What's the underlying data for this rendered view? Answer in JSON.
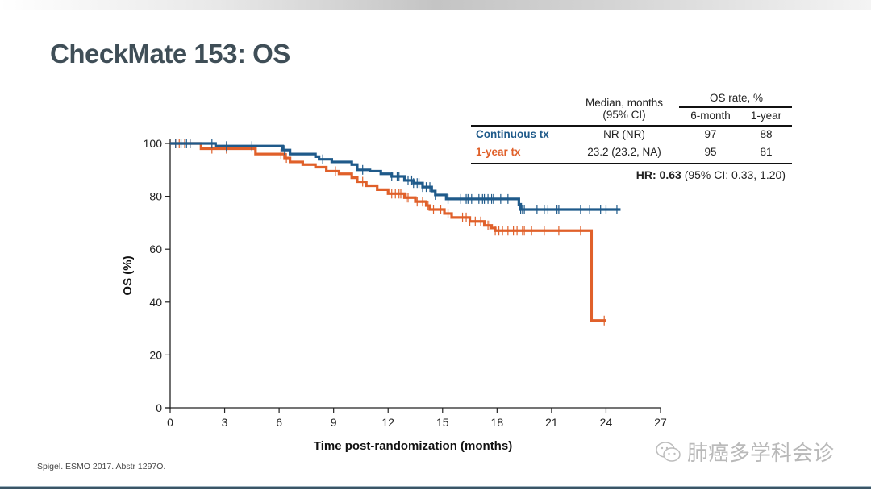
{
  "slide": {
    "title": "CheckMate 153: OS",
    "citation": "Spigel. ESMO 2017. Abstr 1297O.",
    "watermark_text": "肺癌多学科会诊",
    "watermark_icon": "wechat-icon"
  },
  "table": {
    "header_median": "Median, months",
    "header_median_sub": "(95% CI)",
    "header_os_rate": "OS rate, %",
    "header_6m": "6-month",
    "header_1y": "1-year",
    "rows": [
      {
        "arm": "Continuous tx",
        "median": "NR (NR)",
        "os_6m": "97",
        "os_1y": "88",
        "color": "#1f5a8a"
      },
      {
        "arm": "1-year tx",
        "median": "23.2 (23.2, NA)",
        "os_6m": "95",
        "os_1y": "81",
        "color": "#e0602a"
      }
    ],
    "hr_label": "HR: 0.63",
    "hr_ci": " (95% CI: 0.33, 1.20)"
  },
  "chart_data": {
    "type": "line",
    "subtype": "kaplan-meier-step",
    "title": "",
    "xlabel": "Time post-randomization (months)",
    "ylabel": "OS (%)",
    "xlim": [
      0,
      27
    ],
    "ylim": [
      0,
      100
    ],
    "xticks": [
      0,
      3,
      6,
      9,
      12,
      15,
      18,
      21,
      24,
      27
    ],
    "yticks": [
      0,
      20,
      40,
      60,
      80,
      100
    ],
    "grid": false,
    "legend": "top-right (table)",
    "series": [
      {
        "name": "Continuous tx",
        "color": "#1f5a8a",
        "steps": [
          [
            0,
            100
          ],
          [
            2.5,
            99
          ],
          [
            6.2,
            97.5
          ],
          [
            6.6,
            96
          ],
          [
            8,
            95
          ],
          [
            8.2,
            94
          ],
          [
            8.9,
            93
          ],
          [
            10,
            92
          ],
          [
            10.3,
            90
          ],
          [
            11,
            89.5
          ],
          [
            11.6,
            88.5
          ],
          [
            12.2,
            87.5
          ],
          [
            12.9,
            86
          ],
          [
            13.4,
            85
          ],
          [
            13.9,
            83.5
          ],
          [
            14.4,
            82
          ],
          [
            14.6,
            80.5
          ],
          [
            15.2,
            79
          ],
          [
            19.2,
            77
          ],
          [
            19.3,
            75
          ],
          [
            24.8,
            75
          ]
        ],
        "censored": [
          0.3,
          0.6,
          0.9,
          1.1,
          2.3,
          3.1,
          4.5,
          6.3,
          8.4,
          10.6,
          12.2,
          12.5,
          12.6,
          13.1,
          13.3,
          13.4,
          13.6,
          13.7,
          13.9,
          14.1,
          14.3,
          14.6,
          15.3,
          16.0,
          16.3,
          16.4,
          16.6,
          17.0,
          17.2,
          17.3,
          17.5,
          17.7,
          17.8,
          18.2,
          18.6,
          19.3,
          19.4,
          19.5,
          20.2,
          20.6,
          20.8,
          21.3,
          21.4,
          22.6,
          23.1,
          23.7,
          24.0,
          24.6
        ]
      },
      {
        "name": "1-year tx",
        "color": "#e0602a",
        "steps": [
          [
            0,
            100
          ],
          [
            1.7,
            98
          ],
          [
            4.7,
            96
          ],
          [
            6.3,
            94.5
          ],
          [
            6.6,
            93
          ],
          [
            7.3,
            92
          ],
          [
            8,
            91
          ],
          [
            8.6,
            89.5
          ],
          [
            9.3,
            88.5
          ],
          [
            10,
            87
          ],
          [
            10.3,
            85.5
          ],
          [
            10.8,
            84
          ],
          [
            11.4,
            82.5
          ],
          [
            12,
            81
          ],
          [
            12.9,
            79.5
          ],
          [
            13.5,
            78
          ],
          [
            14.1,
            76.5
          ],
          [
            14.3,
            75
          ],
          [
            15.1,
            73.5
          ],
          [
            15.5,
            72
          ],
          [
            16.5,
            70.5
          ],
          [
            17.3,
            69
          ],
          [
            17.7,
            68
          ],
          [
            17.9,
            67
          ],
          [
            23.2,
            67
          ],
          [
            23.2,
            33
          ],
          [
            24.0,
            33
          ]
        ],
        "censored": [
          0.3,
          0.5,
          0.8,
          1.1,
          2.3,
          3.1,
          6.1,
          6.4,
          9.1,
          10.6,
          12.2,
          12.4,
          12.6,
          12.7,
          13.0,
          13.1,
          13.6,
          13.9,
          14.2,
          14.5,
          14.9,
          15.3,
          16.1,
          16.3,
          16.5,
          16.8,
          17.1,
          17.5,
          17.6,
          17.9,
          18.1,
          18.3,
          18.6,
          18.9,
          19.1,
          19.4,
          19.5,
          19.9,
          20.6,
          21.4,
          22.6,
          23.9
        ]
      }
    ]
  }
}
